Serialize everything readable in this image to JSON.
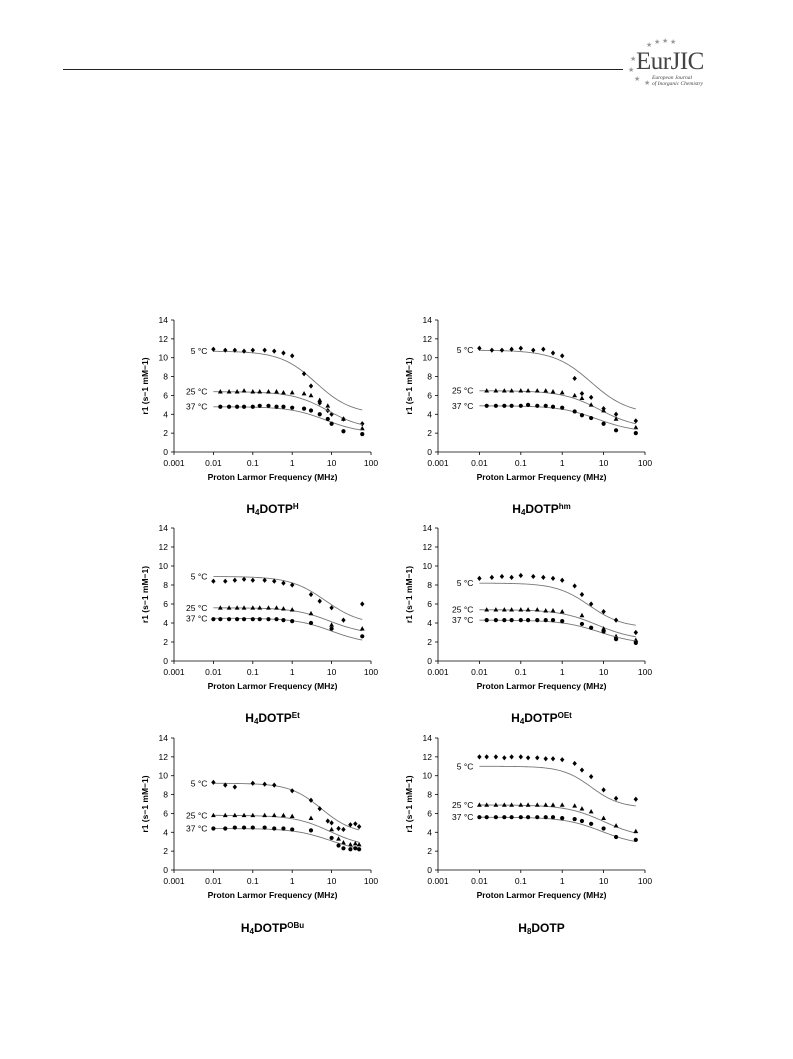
{
  "header": {
    "logo_main": "EurJIC",
    "logo_sub_line1": "European Journal",
    "logo_sub_line2": "of Inorganic Chemistry"
  },
  "chart_data": [
    {
      "type": "scatter",
      "title": "H4DOTPH",
      "title_parts": [
        {
          "t": "H"
        },
        {
          "t": "4",
          "sub": true
        },
        {
          "t": "DOTP"
        },
        {
          "t": "H",
          "sup": true
        }
      ],
      "xlabel": "Proton Larmor Frequency (MHz)",
      "ylabel": "r1 (s−1 mM−1)",
      "x_scale": "log",
      "xlim": [
        0.001,
        100
      ],
      "ylim": [
        0,
        14
      ],
      "xticks": [
        "0.001",
        "0.01",
        "0.1",
        "1",
        "10",
        "100"
      ],
      "yticks": [
        "0",
        "2",
        "4",
        "6",
        "8",
        "10",
        "12",
        "14"
      ],
      "series": [
        {
          "name": "5 °C",
          "marker": "diamond",
          "x": [
            0.01,
            0.02,
            0.035,
            0.06,
            0.1,
            0.2,
            0.35,
            0.6,
            1,
            2,
            3,
            5,
            8,
            10,
            20,
            60
          ],
          "y": [
            10.9,
            10.8,
            10.8,
            10.7,
            10.8,
            10.8,
            10.7,
            10.5,
            10.2,
            8.3,
            7.0,
            5.2,
            4.4,
            4.0,
            3.5,
            3.0
          ],
          "fit": {
            "high": 10.7,
            "low": 4.0,
            "mid": 4.0,
            "w": 0.45
          }
        },
        {
          "name": "25 °C",
          "marker": "triangle",
          "x": [
            0.015,
            0.025,
            0.04,
            0.06,
            0.1,
            0.15,
            0.25,
            0.4,
            0.6,
            1,
            2,
            3,
            5,
            8,
            20,
            60
          ],
          "y": [
            6.4,
            6.4,
            6.4,
            6.5,
            6.4,
            6.4,
            6.4,
            6.4,
            6.3,
            6.3,
            6.2,
            6.0,
            5.5,
            4.9,
            3.5,
            2.5
          ],
          "fit": {
            "high": 6.4,
            "low": 2.4,
            "mid": 8,
            "w": 0.45
          }
        },
        {
          "name": "37 °C",
          "marker": "circle",
          "x": [
            0.015,
            0.025,
            0.04,
            0.06,
            0.1,
            0.15,
            0.25,
            0.4,
            0.6,
            1,
            2,
            3,
            5,
            8,
            10,
            20,
            60
          ],
          "y": [
            4.8,
            4.8,
            4.8,
            4.8,
            4.8,
            4.9,
            4.9,
            4.8,
            4.8,
            4.7,
            4.6,
            4.4,
            4.0,
            3.5,
            3.0,
            2.2,
            1.9
          ],
          "fit": {
            "high": 4.8,
            "low": 2.0,
            "mid": 7,
            "w": 0.45
          }
        }
      ]
    },
    {
      "type": "scatter",
      "title": "H4DOTPhm",
      "title_parts": [
        {
          "t": "H"
        },
        {
          "t": "4",
          "sub": true
        },
        {
          "t": "DOTP"
        },
        {
          "t": "hm",
          "sup": true
        }
      ],
      "xlabel": "Proton Larmor Frequency (MHz)",
      "ylabel": "r1 (s−1 mM−1)",
      "x_scale": "log",
      "xlim": [
        0.001,
        100
      ],
      "ylim": [
        0,
        14
      ],
      "xticks": [
        "0.001",
        "0.01",
        "0.1",
        "1",
        "10",
        "100"
      ],
      "yticks": [
        "0",
        "2",
        "4",
        "6",
        "8",
        "10",
        "12",
        "14"
      ],
      "series": [
        {
          "name": "5 °C",
          "marker": "diamond",
          "x": [
            0.01,
            0.02,
            0.035,
            0.06,
            0.1,
            0.2,
            0.35,
            0.6,
            1,
            2,
            3,
            5,
            10,
            20,
            60
          ],
          "y": [
            11.0,
            10.8,
            10.8,
            10.9,
            11.0,
            10.8,
            10.9,
            10.5,
            10.2,
            7.8,
            6.2,
            5.8,
            4.6,
            4.0,
            3.3
          ],
          "fit": {
            "high": 10.8,
            "low": 4.0,
            "mid": 5,
            "w": 0.45
          }
        },
        {
          "name": "25 °C",
          "marker": "triangle",
          "x": [
            0.015,
            0.025,
            0.04,
            0.06,
            0.1,
            0.15,
            0.25,
            0.4,
            0.6,
            1,
            2,
            3,
            5,
            10,
            20,
            60
          ],
          "y": [
            6.5,
            6.5,
            6.5,
            6.5,
            6.5,
            6.5,
            6.5,
            6.5,
            6.4,
            6.3,
            6.0,
            5.7,
            5.0,
            4.4,
            3.5,
            2.6
          ],
          "fit": {
            "high": 6.5,
            "low": 2.5,
            "mid": 8,
            "w": 0.45
          }
        },
        {
          "name": "37 °C",
          "marker": "circle",
          "x": [
            0.015,
            0.025,
            0.04,
            0.06,
            0.1,
            0.15,
            0.25,
            0.4,
            0.6,
            1,
            2,
            3,
            5,
            10,
            20,
            60
          ],
          "y": [
            4.9,
            4.9,
            4.9,
            4.9,
            4.9,
            5.0,
            4.9,
            4.9,
            4.8,
            4.7,
            4.3,
            3.9,
            3.6,
            3.0,
            2.3,
            2.0
          ],
          "fit": {
            "high": 4.9,
            "low": 2.1,
            "mid": 7,
            "w": 0.45
          }
        }
      ]
    },
    {
      "type": "scatter",
      "title": "H4DOTPEt",
      "title_parts": [
        {
          "t": "H"
        },
        {
          "t": "4",
          "sub": true
        },
        {
          "t": "DOTP"
        },
        {
          "t": "Et",
          "sup": true
        }
      ],
      "xlabel": "Proton Larmor Frequency (MHz)",
      "ylabel": "r1 (s−1 mM−1)",
      "x_scale": "log",
      "xlim": [
        0.001,
        100
      ],
      "ylim": [
        0,
        14
      ],
      "xticks": [
        "0.001",
        "0.01",
        "0.1",
        "1",
        "10",
        "100"
      ],
      "yticks": [
        "0",
        "2",
        "4",
        "6",
        "8",
        "10",
        "12",
        "14"
      ],
      "series": [
        {
          "name": "5 °C",
          "marker": "diamond",
          "x": [
            0.01,
            0.02,
            0.035,
            0.06,
            0.1,
            0.2,
            0.35,
            0.6,
            1,
            3,
            5,
            10,
            20,
            60
          ],
          "y": [
            8.4,
            8.4,
            8.5,
            8.6,
            8.5,
            8.5,
            8.4,
            8.2,
            8.0,
            7.0,
            6.3,
            5.6,
            4.3,
            6.0
          ],
          "fit": {
            "high": 8.9,
            "low": 3.8,
            "mid": 7,
            "w": 0.45
          }
        },
        {
          "name": "25 °C",
          "marker": "triangle",
          "x": [
            0.015,
            0.025,
            0.04,
            0.06,
            0.1,
            0.15,
            0.25,
            0.4,
            0.6,
            1,
            3,
            10,
            60
          ],
          "y": [
            5.6,
            5.6,
            5.6,
            5.6,
            5.6,
            5.6,
            5.6,
            5.6,
            5.5,
            5.4,
            5.0,
            3.8,
            3.4
          ],
          "fit": {
            "high": 5.6,
            "low": 2.8,
            "mid": 9,
            "w": 0.45
          }
        },
        {
          "name": "37 °C",
          "marker": "circle",
          "x": [
            0.01,
            0.015,
            0.025,
            0.04,
            0.06,
            0.1,
            0.15,
            0.25,
            0.4,
            0.6,
            1,
            3,
            10,
            60
          ],
          "y": [
            4.4,
            4.4,
            4.4,
            4.4,
            4.4,
            4.4,
            4.4,
            4.4,
            4.4,
            4.3,
            4.2,
            4.0,
            3.4,
            2.6
          ],
          "fit": {
            "high": 4.5,
            "low": 1.8,
            "mid": 10,
            "w": 0.45
          }
        }
      ]
    },
    {
      "type": "scatter",
      "title": "H4DOTPOEt",
      "title_parts": [
        {
          "t": "H"
        },
        {
          "t": "4",
          "sub": true
        },
        {
          "t": "DOTP"
        },
        {
          "t": "OEt",
          "sup": true
        }
      ],
      "xlabel": "Proton Larmor Frequency (MHz)",
      "ylabel": "r1 (s−1 mM−1)",
      "x_scale": "log",
      "xlim": [
        0.001,
        100
      ],
      "ylim": [
        0,
        14
      ],
      "xticks": [
        "0.001",
        "0.01",
        "0.1",
        "1",
        "10",
        "100"
      ],
      "yticks": [
        "0",
        "2",
        "4",
        "6",
        "8",
        "10",
        "12",
        "14"
      ],
      "series": [
        {
          "name": "5 °C",
          "marker": "diamond",
          "x": [
            0.01,
            0.02,
            0.035,
            0.06,
            0.1,
            0.2,
            0.35,
            0.6,
            1,
            2,
            3,
            5,
            10,
            20,
            60
          ],
          "y": [
            8.7,
            8.8,
            8.9,
            8.8,
            9.0,
            8.9,
            8.8,
            8.7,
            8.5,
            7.9,
            7.0,
            6.0,
            5.2,
            4.3,
            3.0
          ],
          "fit": {
            "high": 8.2,
            "low": 3.5,
            "mid": 4.5,
            "w": 0.4
          }
        },
        {
          "name": "25 °C",
          "marker": "triangle",
          "x": [
            0.015,
            0.025,
            0.04,
            0.06,
            0.1,
            0.15,
            0.25,
            0.4,
            0.6,
            1,
            3,
            10,
            20,
            60
          ],
          "y": [
            5.4,
            5.4,
            5.4,
            5.4,
            5.4,
            5.4,
            5.4,
            5.3,
            5.3,
            5.2,
            4.8,
            3.4,
            2.6,
            2.2
          ],
          "fit": {
            "high": 5.4,
            "low": 2.2,
            "mid": 7,
            "w": 0.45
          }
        },
        {
          "name": "37 °C",
          "marker": "circle",
          "x": [
            0.015,
            0.025,
            0.04,
            0.06,
            0.1,
            0.15,
            0.25,
            0.4,
            0.6,
            1,
            3,
            5,
            10,
            20,
            60
          ],
          "y": [
            4.3,
            4.3,
            4.3,
            4.3,
            4.3,
            4.3,
            4.3,
            4.3,
            4.3,
            4.2,
            3.9,
            3.5,
            3.1,
            2.3,
            1.9
          ],
          "fit": {
            "high": 4.3,
            "low": 1.8,
            "mid": 8,
            "w": 0.45
          }
        }
      ]
    },
    {
      "type": "scatter",
      "title": "H4DOTPOBu",
      "title_parts": [
        {
          "t": "H"
        },
        {
          "t": "4",
          "sub": true
        },
        {
          "t": "DOTP"
        },
        {
          "t": "OBu",
          "sup": true
        }
      ],
      "xlabel": "Proton Larmor Frequency (MHz)",
      "ylabel": "r1 (s−1 mM−1)",
      "x_scale": "log",
      "xlim": [
        0.001,
        100
      ],
      "ylim": [
        0,
        14
      ],
      "xticks": [
        "0.001",
        "0.01",
        "0.1",
        "1",
        "10",
        "100"
      ],
      "yticks": [
        "0",
        "2",
        "4",
        "6",
        "8",
        "10",
        "12",
        "14"
      ],
      "series": [
        {
          "name": "5 °C",
          "marker": "diamond",
          "x": [
            0.01,
            0.02,
            0.035,
            0.1,
            0.2,
            0.35,
            1,
            3,
            5,
            8,
            10,
            15,
            20,
            30,
            40,
            50
          ],
          "y": [
            9.3,
            9.0,
            8.8,
            9.2,
            9.1,
            9.0,
            8.4,
            7.4,
            6.5,
            5.2,
            5.0,
            4.4,
            4.3,
            4.8,
            4.9,
            4.6
          ],
          "fit": {
            "high": 9.2,
            "low": 3.8,
            "mid": 5.5,
            "w": 0.4
          }
        },
        {
          "name": "25 °C",
          "marker": "triangle",
          "x": [
            0.01,
            0.02,
            0.035,
            0.06,
            0.1,
            0.2,
            0.35,
            0.6,
            1,
            3,
            10,
            15,
            20,
            30,
            40,
            50
          ],
          "y": [
            5.8,
            5.8,
            5.8,
            5.8,
            5.8,
            5.8,
            5.8,
            5.8,
            5.7,
            5.5,
            4.3,
            3.3,
            2.9,
            2.7,
            2.8,
            2.7
          ],
          "fit": {
            "high": 5.8,
            "low": 2.4,
            "mid": 9,
            "w": 0.45
          }
        },
        {
          "name": "37 °C",
          "marker": "circle",
          "x": [
            0.01,
            0.02,
            0.035,
            0.06,
            0.1,
            0.2,
            0.35,
            0.6,
            1,
            3,
            10,
            15,
            20,
            30,
            40,
            50
          ],
          "y": [
            4.4,
            4.4,
            4.5,
            4.5,
            4.5,
            4.5,
            4.4,
            4.4,
            4.3,
            4.2,
            3.4,
            2.6,
            2.3,
            2.2,
            2.3,
            2.2
          ],
          "fit": {
            "high": 4.4,
            "low": 1.9,
            "mid": 9,
            "w": 0.45
          }
        }
      ]
    },
    {
      "type": "scatter",
      "title": "H8DOTP",
      "title_parts": [
        {
          "t": "H"
        },
        {
          "t": "8",
          "sub": true
        },
        {
          "t": "DOTP"
        }
      ],
      "xlabel": "Proton Larmor Frequency (MHz)",
      "ylabel": "r1 (s−1 mM−1)",
      "x_scale": "log",
      "xlim": [
        0.001,
        100
      ],
      "ylim": [
        0,
        14
      ],
      "xticks": [
        "0.001",
        "0.01",
        "0.1",
        "1",
        "10",
        "100"
      ],
      "yticks": [
        "0",
        "2",
        "4",
        "6",
        "8",
        "10",
        "12",
        "14"
      ],
      "series": [
        {
          "name": "5 °C",
          "marker": "diamond",
          "x": [
            0.01,
            0.015,
            0.025,
            0.04,
            0.06,
            0.1,
            0.15,
            0.25,
            0.4,
            0.6,
            1,
            2,
            3,
            5,
            10,
            20,
            60
          ],
          "y": [
            12.0,
            12.0,
            12.0,
            11.9,
            12.0,
            12.0,
            11.9,
            11.9,
            11.8,
            11.8,
            11.7,
            11.3,
            10.6,
            9.9,
            8.5,
            7.6,
            7.5
          ],
          "fit": {
            "high": 11.0,
            "low": 6.6,
            "mid": 5,
            "w": 0.35
          }
        },
        {
          "name": "25 °C",
          "marker": "triangle",
          "x": [
            0.01,
            0.015,
            0.025,
            0.04,
            0.06,
            0.1,
            0.15,
            0.25,
            0.4,
            0.6,
            1,
            2,
            3,
            5,
            10,
            20,
            60
          ],
          "y": [
            6.9,
            6.9,
            6.9,
            6.9,
            6.9,
            6.9,
            6.9,
            6.9,
            6.9,
            6.9,
            6.9,
            6.8,
            6.5,
            6.2,
            5.5,
            4.7,
            4.1
          ],
          "fit": {
            "high": 6.9,
            "low": 3.4,
            "mid": 10,
            "w": 0.45
          }
        },
        {
          "name": "37 °C",
          "marker": "circle",
          "x": [
            0.01,
            0.015,
            0.025,
            0.04,
            0.06,
            0.1,
            0.15,
            0.25,
            0.4,
            0.6,
            1,
            2,
            3,
            5,
            10,
            20,
            60
          ],
          "y": [
            5.6,
            5.6,
            5.6,
            5.6,
            5.6,
            5.6,
            5.6,
            5.6,
            5.6,
            5.6,
            5.5,
            5.4,
            5.2,
            4.9,
            4.4,
            3.5,
            3.2
          ],
          "fit": {
            "high": 5.6,
            "low": 2.6,
            "mid": 9,
            "w": 0.45
          }
        }
      ]
    }
  ]
}
